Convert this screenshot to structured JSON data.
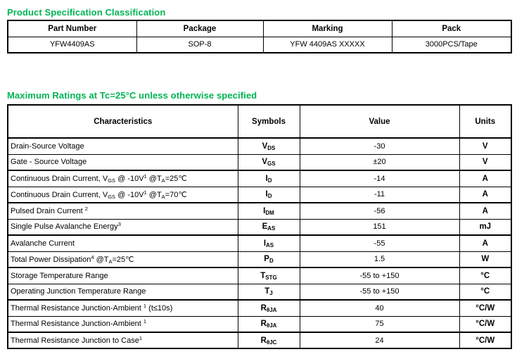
{
  "page": {
    "background": "#ffffff",
    "text_color": "#000000",
    "accent_green": "#00b454"
  },
  "sections": [
    {
      "title": "Product Specification Classification",
      "table": {
        "headers": [
          "Part Number",
          "Package",
          "Marking",
          "Pack"
        ],
        "rows": [
          [
            "YFW4409AS",
            "SOP-8",
            "YFW 4409AS XXXXX",
            "3000PCS/Tape"
          ]
        ]
      }
    },
    {
      "title": "Maximum Ratings at Tc=25°C unless otherwise specified",
      "table": {
        "headers": [
          "Characteristics",
          "Symbols",
          "Value",
          "Units"
        ],
        "rows": [
          {
            "characteristic": "Drain-Source Voltage",
            "symbol": "V_{DS}",
            "value": "-30",
            "unit": "V"
          },
          {
            "characteristic": "Gate - Source Voltage",
            "symbol": "V_{GS}",
            "value": "±20",
            "unit": "V"
          },
          {
            "characteristic": "Continuous Drain Current, V_{GS} @ -10V^{1}  @T_{A}=25℃",
            "symbol": "I_{D}",
            "value": "-14",
            "unit": "A"
          },
          {
            "characteristic": "Continuous Drain Current, V_{GS} @ -10V^{1} @T_{A}=70℃",
            "symbol": "I_{D}",
            "value": "-11",
            "unit": "A"
          },
          {
            "characteristic": "Pulsed Drain Current ^{2}",
            "symbol": "I_{DM}",
            "value": "-56",
            "unit": "A"
          },
          {
            "characteristic": "Single Pulse Avalanche Energy^{3}",
            "symbol": "E_{AS}",
            "value": "151",
            "unit": "mJ"
          },
          {
            "characteristic": "Avalanche Current",
            "symbol": "I_{AS}",
            "value": "-55",
            "unit": "A"
          },
          {
            "characteristic": "Total Power Dissipation^{4} @T_{A}=25℃",
            "symbol": "P_{D}",
            "value": "1.5",
            "unit": "W"
          },
          {
            "characteristic": "Storage Temperature Range",
            "symbol": "T_{STG}",
            "value": "-55 to +150",
            "unit": "°C"
          },
          {
            "characteristic": "Operating Junction Temperature Range",
            "symbol": "T_{J}",
            "value": "-55 to +150",
            "unit": "°C"
          },
          {
            "characteristic": "Thermal Resistance Junction-Ambient ^{1} (t≤10s)",
            "symbol": "R_{θJA}",
            "value": "40",
            "unit": "°C/W"
          },
          {
            "characteristic": "Thermal Resistance Junction-Ambient ^{1}",
            "symbol": "R_{θJA}",
            "value": "75",
            "unit": "°C/W"
          },
          {
            "characteristic": "Thermal Resistance Junction to Case^{1}",
            "symbol": "R_{θJC}",
            "value": "24",
            "unit": "°C/W"
          }
        ]
      }
    }
  ]
}
